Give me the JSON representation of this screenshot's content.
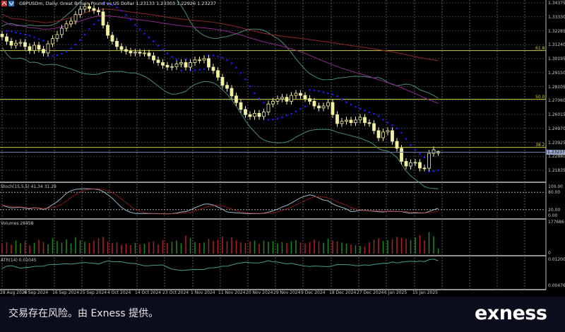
{
  "header": {
    "title": "GBPUSDm, Daily:  Great Britain Pound vs US Dollar  1.23133 1.23303 1.22926 1.23237",
    "icon": "metatrader-chart-icon"
  },
  "price_scale": [
    "1.34375",
    "1.33330",
    "1.32285",
    "1.31240",
    "1.30195",
    "1.29150",
    "1.28105",
    "1.27060",
    "1.26015",
    "1.24970",
    "1.23925",
    "1.22880",
    "1.21835"
  ],
  "current_price": "1.23237",
  "fib_levels": [
    {
      "label": "61.8",
      "price": 1.308
    },
    {
      "label": "50.0",
      "price": 1.2715
    },
    {
      "label": "38.2",
      "price": 1.2355
    }
  ],
  "stoch": {
    "label": "Stoch(15,5,5) 41.34 31.29",
    "scale": [
      "100.00",
      "80.00",
      "20.00",
      "0.00"
    ]
  },
  "volumes": {
    "label": "Volumes 28458",
    "scale": [
      "177686",
      "0"
    ]
  },
  "atr": {
    "label": "ATR(14) 0.01045",
    "scale": [
      "0.01200",
      "0.00476"
    ]
  },
  "dates": [
    "28 Aug 2024",
    "6 Sep 2024",
    "16 Sep 2024",
    "25 Sep 2024",
    "4 Oct 2024",
    "14 Oct 2024",
    "23 Oct 2024",
    "1 Nov 2024",
    "11 Nov 2024",
    "20 Nov 2024",
    "29 Nov 2024",
    "9 Dec 2024",
    "18 Dec 2024",
    "27 Dec 2024",
    "6 Jan 2025",
    "15 Jan 2025"
  ],
  "footer": {
    "disclaimer": "交易存在风险。由 Exness 提供。",
    "brand": "exness"
  },
  "colors": {
    "background": "#000000",
    "candle": "#f0f0a0",
    "bands": "#4a8a7a",
    "sar": "#1a1aff",
    "fib": "#c8c83c",
    "volume_up": "#1e8a1e",
    "volume_down": "#b22222"
  },
  "chart_data": {
    "type": "candlestick",
    "symbol": "GBPUSDm",
    "timeframe": "Daily",
    "last_bar": {
      "open": 1.23133,
      "high": 1.23303,
      "low": 1.22926,
      "close": 1.23237
    },
    "ylim": [
      1.2094,
      1.34375
    ],
    "closes": [
      1.3183,
      1.315,
      1.312,
      1.3135,
      1.3141,
      1.311,
      1.308,
      1.312,
      1.309,
      1.3062,
      1.313,
      1.317,
      1.32,
      1.3247,
      1.328,
      1.33,
      1.335,
      1.339,
      1.341,
      1.3395,
      1.338,
      1.337,
      1.327,
      1.3194,
      1.315,
      1.311,
      1.3088,
      1.3075,
      1.3062,
      1.3068,
      1.306,
      1.3062,
      1.304,
      1.3009,
      1.299,
      1.297,
      1.2956,
      1.296,
      1.298,
      1.299,
      1.2956,
      1.299,
      1.301,
      1.3009,
      1.302,
      1.2956,
      1.293,
      1.288,
      1.282,
      1.2797,
      1.274,
      1.269,
      1.2639,
      1.26,
      1.2586,
      1.261,
      1.2586,
      1.262,
      1.268,
      1.27,
      1.2718,
      1.273,
      1.27,
      1.2744,
      1.276,
      1.2744,
      1.272,
      1.27,
      1.2665,
      1.265,
      1.2665,
      1.2691,
      1.26,
      1.2533,
      1.255,
      1.2559,
      1.254,
      1.256,
      1.258,
      1.254,
      1.2533,
      1.248,
      1.2427,
      1.247,
      1.248,
      1.24,
      1.2348,
      1.225,
      1.2215,
      1.224,
      1.2242,
      1.22,
      1.2199,
      1.231,
      1.2337,
      1.23237
    ],
    "volumes": [
      52000,
      61000,
      48000,
      70000,
      55000,
      66000,
      44000,
      58000,
      73000,
      62000,
      50000,
      81000,
      67000,
      59000,
      76000,
      54000,
      88000,
      71000,
      63000,
      57000,
      69000,
      82000,
      90000,
      64000,
      56000,
      60000,
      47000,
      52000,
      45000,
      58000,
      49000,
      53000,
      61000,
      66000,
      50000,
      72000,
      58000,
      63000,
      70000,
      55000,
      96000,
      84000,
      62000,
      57000,
      59000,
      78000,
      68000,
      74000,
      92000,
      65000,
      87000,
      71000,
      60000,
      58000,
      64000,
      69000,
      52000,
      70000,
      63000,
      67000,
      55000,
      61000,
      58000,
      66000,
      72000,
      60000,
      54000,
      62000,
      75000,
      66000,
      58000,
      80000,
      70000,
      64000,
      59000,
      53000,
      48000,
      44000,
      40000,
      38000,
      60000,
      74000,
      82000,
      68000,
      71000,
      77000,
      90000,
      85000,
      79000,
      73000,
      86000,
      98000,
      70000,
      115000,
      92000,
      28458
    ],
    "indicators": [
      "Bollinger Bands",
      "Moving Average",
      "Moving Average",
      "Parabolic SAR",
      "Fibonacci retracement",
      "Stochastic(15,5,5)",
      "Volumes",
      "ATR(14)"
    ]
  }
}
